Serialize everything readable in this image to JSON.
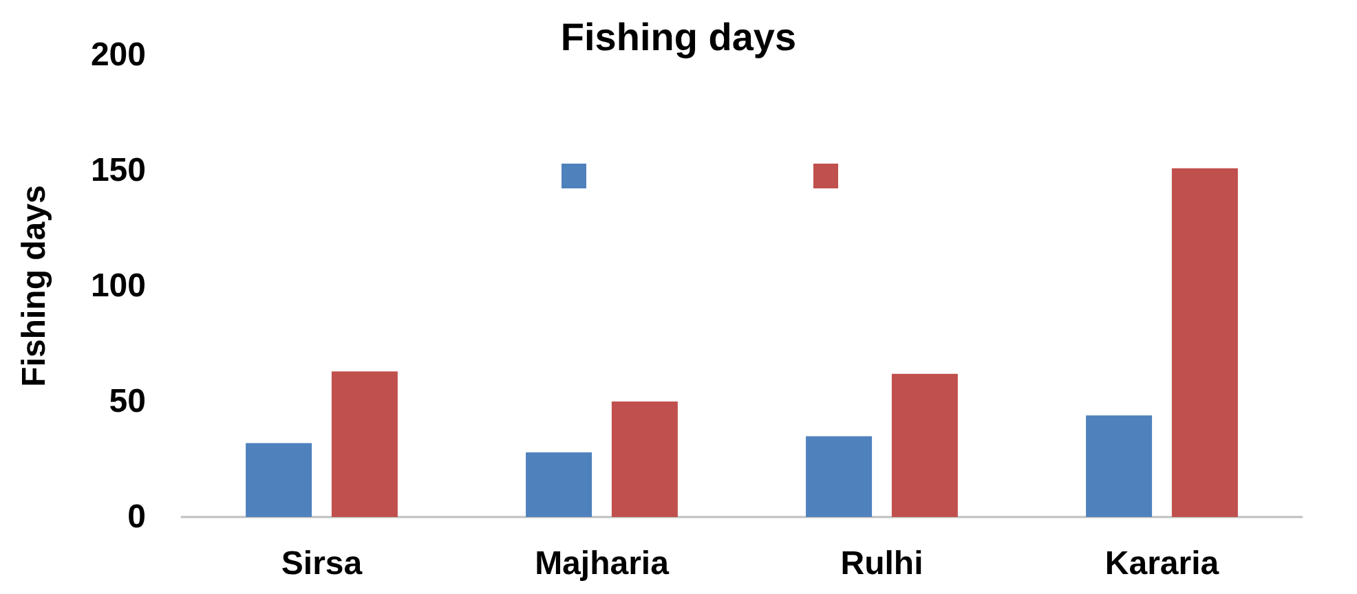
{
  "chart_data": {
    "type": "bar",
    "title": "Fishing days",
    "ylabel": "Fishing days",
    "categories": [
      "Sirsa",
      "Majharia",
      "Rulhi",
      "Kararia"
    ],
    "series": [
      {
        "color": "#4f81bd",
        "values": [
          32,
          28,
          35,
          44
        ]
      },
      {
        "color": "#c0504d",
        "values": [
          63,
          50,
          62,
          151
        ]
      }
    ],
    "ylim": [
      0,
      200
    ],
    "yticks": [
      0,
      50,
      100,
      150,
      200
    ],
    "grid": false
  }
}
